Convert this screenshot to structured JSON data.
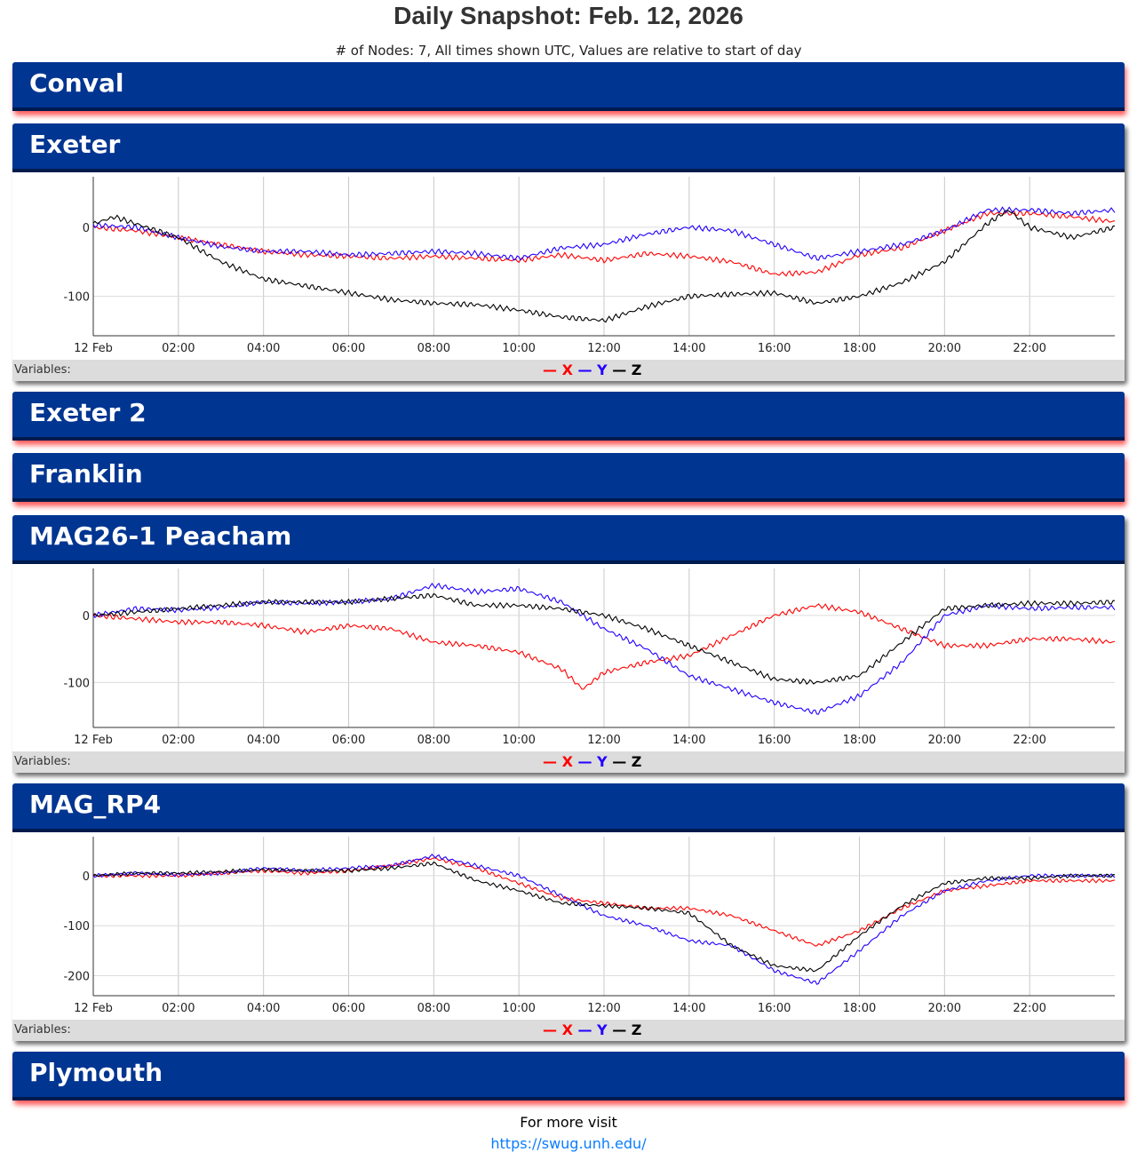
{
  "title": "Daily Snapshot: Feb. 12, 2026",
  "subtitle": "# of Nodes: 7, All times shown UTC, Values are relative to start of day",
  "variables_label": "Variables:",
  "legend": [
    {
      "name": "X",
      "color": "#ff0000"
    },
    {
      "name": "Y",
      "color": "#2200ff"
    },
    {
      "name": "Z",
      "color": "#000000"
    }
  ],
  "nodes": [
    "Conval",
    "Exeter",
    "Exeter 2",
    "Franklin",
    "MAG26-1 Peacham",
    "MAG_RP4",
    "Plymouth"
  ],
  "footer": {
    "text": "For more visit",
    "link": "https://swug.unh.edu/"
  },
  "chart_data": [
    {
      "type": "line",
      "node": "Exeter",
      "x_ticks": [
        "12 Feb",
        "02:00",
        "04:00",
        "06:00",
        "08:00",
        "10:00",
        "12:00",
        "14:00",
        "16:00",
        "18:00",
        "20:00",
        "22:00"
      ],
      "y_ticks": [
        0,
        -100
      ],
      "ylim": [
        -157,
        73
      ],
      "xlim_hours": [
        0,
        24
      ],
      "series": [
        {
          "name": "X",
          "color": "#ff0000",
          "points": [
            [
              0,
              0
            ],
            [
              1,
              -5
            ],
            [
              2,
              -15
            ],
            [
              3,
              -25
            ],
            [
              4,
              -35
            ],
            [
              5,
              -40
            ],
            [
              6,
              -42
            ],
            [
              7,
              -45
            ],
            [
              8,
              -42
            ],
            [
              9,
              -45
            ],
            [
              10,
              -48
            ],
            [
              11,
              -40
            ],
            [
              12,
              -48
            ],
            [
              13,
              -38
            ],
            [
              14,
              -42
            ],
            [
              15,
              -50
            ],
            [
              16,
              -68
            ],
            [
              17,
              -65
            ],
            [
              18,
              -40
            ],
            [
              19,
              -30
            ],
            [
              20,
              -5
            ],
            [
              21,
              20
            ],
            [
              22,
              20
            ],
            [
              23,
              15
            ],
            [
              24,
              8
            ]
          ]
        },
        {
          "name": "Y",
          "color": "#2200ff",
          "points": [
            [
              0,
              3
            ],
            [
              1,
              0
            ],
            [
              2,
              -15
            ],
            [
              3,
              -28
            ],
            [
              4,
              -35
            ],
            [
              5,
              -35
            ],
            [
              6,
              -40
            ],
            [
              7,
              -38
            ],
            [
              8,
              -35
            ],
            [
              9,
              -38
            ],
            [
              10,
              -45
            ],
            [
              11,
              -30
            ],
            [
              12,
              -25
            ],
            [
              13,
              -10
            ],
            [
              14,
              0
            ],
            [
              15,
              -5
            ],
            [
              16,
              -25
            ],
            [
              17,
              -45
            ],
            [
              18,
              -35
            ],
            [
              19,
              -25
            ],
            [
              20,
              -5
            ],
            [
              21,
              25
            ],
            [
              22,
              25
            ],
            [
              23,
              20
            ],
            [
              24,
              25
            ]
          ]
        },
        {
          "name": "Z",
          "color": "#000000",
          "points": [
            [
              0,
              5
            ],
            [
              0.5,
              15
            ],
            [
              1,
              5
            ],
            [
              2,
              -15
            ],
            [
              3,
              -50
            ],
            [
              4,
              -75
            ],
            [
              5,
              -85
            ],
            [
              6,
              -95
            ],
            [
              7,
              -105
            ],
            [
              8,
              -110
            ],
            [
              9,
              -112
            ],
            [
              10,
              -120
            ],
            [
              11,
              -130
            ],
            [
              12,
              -135
            ],
            [
              13,
              -115
            ],
            [
              14,
              -100
            ],
            [
              15,
              -97
            ],
            [
              16,
              -95
            ],
            [
              17,
              -110
            ],
            [
              18,
              -100
            ],
            [
              19,
              -80
            ],
            [
              20,
              -50
            ],
            [
              21,
              5
            ],
            [
              21.5,
              25
            ],
            [
              22,
              0
            ],
            [
              23,
              -15
            ],
            [
              24,
              0
            ]
          ]
        }
      ]
    },
    {
      "type": "line",
      "node": "MAG26-1 Peacham",
      "x_ticks": [
        "12 Feb",
        "02:00",
        "04:00",
        "06:00",
        "08:00",
        "10:00",
        "12:00",
        "14:00",
        "16:00",
        "18:00",
        "20:00",
        "22:00"
      ],
      "y_ticks": [
        0,
        -100
      ],
      "ylim": [
        -167,
        70
      ],
      "xlim_hours": [
        0,
        24
      ],
      "series": [
        {
          "name": "X",
          "color": "#ff0000",
          "points": [
            [
              0,
              0
            ],
            [
              1,
              -5
            ],
            [
              2,
              -10
            ],
            [
              3,
              -10
            ],
            [
              4,
              -15
            ],
            [
              5,
              -25
            ],
            [
              6,
              -15
            ],
            [
              7,
              -20
            ],
            [
              8,
              -40
            ],
            [
              9,
              -45
            ],
            [
              10,
              -55
            ],
            [
              11,
              -80
            ],
            [
              11.5,
              -110
            ],
            [
              12,
              -85
            ],
            [
              13,
              -70
            ],
            [
              14,
              -60
            ],
            [
              15,
              -30
            ],
            [
              16,
              0
            ],
            [
              17,
              15
            ],
            [
              18,
              5
            ],
            [
              19,
              -20
            ],
            [
              20,
              -45
            ],
            [
              21,
              -45
            ],
            [
              22,
              -35
            ],
            [
              23,
              -35
            ],
            [
              24,
              -40
            ]
          ]
        },
        {
          "name": "Y",
          "color": "#2200ff",
          "points": [
            [
              0,
              0
            ],
            [
              1,
              10
            ],
            [
              2,
              8
            ],
            [
              3,
              12
            ],
            [
              4,
              20
            ],
            [
              5,
              18
            ],
            [
              6,
              20
            ],
            [
              7,
              25
            ],
            [
              8,
              45
            ],
            [
              9,
              35
            ],
            [
              10,
              40
            ],
            [
              11,
              20
            ],
            [
              12,
              -20
            ],
            [
              13,
              -50
            ],
            [
              14,
              -90
            ],
            [
              15,
              -110
            ],
            [
              16,
              -130
            ],
            [
              17,
              -145
            ],
            [
              18,
              -120
            ],
            [
              19,
              -70
            ],
            [
              20,
              0
            ],
            [
              21,
              15
            ],
            [
              22,
              10
            ],
            [
              23,
              12
            ],
            [
              24,
              12
            ]
          ]
        },
        {
          "name": "Z",
          "color": "#000000",
          "points": [
            [
              0,
              0
            ],
            [
              1,
              5
            ],
            [
              2,
              10
            ],
            [
              3,
              15
            ],
            [
              4,
              20
            ],
            [
              5,
              20
            ],
            [
              6,
              20
            ],
            [
              7,
              25
            ],
            [
              8,
              30
            ],
            [
              9,
              15
            ],
            [
              10,
              15
            ],
            [
              11,
              10
            ],
            [
              12,
              0
            ],
            [
              13,
              -20
            ],
            [
              14,
              -45
            ],
            [
              15,
              -70
            ],
            [
              16,
              -95
            ],
            [
              17,
              -100
            ],
            [
              18,
              -90
            ],
            [
              19,
              -40
            ],
            [
              20,
              10
            ],
            [
              21,
              15
            ],
            [
              22,
              18
            ],
            [
              23,
              18
            ],
            [
              24,
              20
            ]
          ]
        }
      ]
    },
    {
      "type": "line",
      "node": "MAG_RP4",
      "x_ticks": [
        "12 Feb",
        "02:00",
        "04:00",
        "06:00",
        "08:00",
        "10:00",
        "12:00",
        "14:00",
        "16:00",
        "18:00",
        "20:00",
        "22:00"
      ],
      "y_ticks": [
        0,
        -100,
        -200
      ],
      "ylim": [
        -240,
        78
      ],
      "xlim_hours": [
        0,
        24
      ],
      "series": [
        {
          "name": "X",
          "color": "#ff0000",
          "points": [
            [
              0,
              0
            ],
            [
              1,
              0
            ],
            [
              2,
              0
            ],
            [
              3,
              5
            ],
            [
              4,
              10
            ],
            [
              5,
              5
            ],
            [
              6,
              10
            ],
            [
              7,
              20
            ],
            [
              8,
              35
            ],
            [
              9,
              15
            ],
            [
              10,
              -15
            ],
            [
              11,
              -45
            ],
            [
              12,
              -55
            ],
            [
              13,
              -65
            ],
            [
              14,
              -65
            ],
            [
              15,
              -80
            ],
            [
              16,
              -110
            ],
            [
              17,
              -140
            ],
            [
              18,
              -110
            ],
            [
              19,
              -65
            ],
            [
              20,
              -30
            ],
            [
              21,
              -20
            ],
            [
              22,
              -10
            ],
            [
              23,
              -10
            ],
            [
              24,
              -10
            ]
          ]
        },
        {
          "name": "Y",
          "color": "#2200ff",
          "points": [
            [
              0,
              0
            ],
            [
              1,
              5
            ],
            [
              2,
              2
            ],
            [
              3,
              5
            ],
            [
              4,
              15
            ],
            [
              5,
              10
            ],
            [
              6,
              15
            ],
            [
              7,
              20
            ],
            [
              8,
              40
            ],
            [
              9,
              20
            ],
            [
              10,
              0
            ],
            [
              11,
              -40
            ],
            [
              12,
              -80
            ],
            [
              13,
              -100
            ],
            [
              14,
              -130
            ],
            [
              15,
              -140
            ],
            [
              16,
              -190
            ],
            [
              17,
              -215
            ],
            [
              18,
              -150
            ],
            [
              19,
              -80
            ],
            [
              20,
              -30
            ],
            [
              21,
              -10
            ],
            [
              22,
              0
            ],
            [
              23,
              0
            ],
            [
              24,
              0
            ]
          ]
        },
        {
          "name": "Z",
          "color": "#000000",
          "points": [
            [
              0,
              0
            ],
            [
              1,
              5
            ],
            [
              2,
              5
            ],
            [
              3,
              8
            ],
            [
              4,
              12
            ],
            [
              5,
              10
            ],
            [
              6,
              10
            ],
            [
              7,
              15
            ],
            [
              8,
              25
            ],
            [
              9,
              -10
            ],
            [
              10,
              -30
            ],
            [
              11,
              -55
            ],
            [
              12,
              -60
            ],
            [
              13,
              -65
            ],
            [
              14,
              -75
            ],
            [
              15,
              -140
            ],
            [
              16,
              -180
            ],
            [
              17,
              -190
            ],
            [
              18,
              -120
            ],
            [
              19,
              -60
            ],
            [
              20,
              -15
            ],
            [
              21,
              -5
            ],
            [
              22,
              -5
            ],
            [
              23,
              0
            ],
            [
              24,
              0
            ]
          ]
        }
      ]
    }
  ]
}
